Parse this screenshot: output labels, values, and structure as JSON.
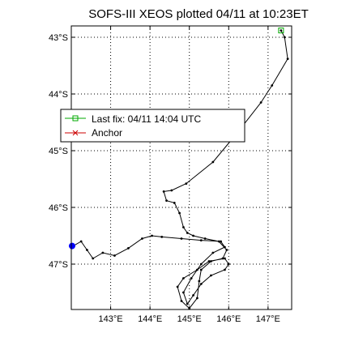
{
  "chart_data": {
    "type": "line",
    "title": "SOFS-III XEOS plotted 04/11 at 10:23ET",
    "xlabel": "",
    "ylabel": "",
    "xlim": [
      142.0,
      147.6
    ],
    "ylim": [
      -47.8,
      -42.8
    ],
    "grid": true,
    "legend_position": "upper-left",
    "x_ticks": [
      143,
      144,
      145,
      146,
      147
    ],
    "x_tick_labels": [
      "143°E",
      "144°E",
      "145°E",
      "146°E",
      "147°E"
    ],
    "y_ticks": [
      -43,
      -44,
      -45,
      -46,
      -47
    ],
    "y_tick_labels": [
      "43°S",
      "44°S",
      "45°S",
      "46°S",
      "47°S"
    ],
    "series": [
      {
        "name": "Last fix: 04/11 14:04 UTC",
        "color": "#00aa00",
        "marker": "square",
        "points": [
          [
            147.33,
            -42.88
          ]
        ]
      },
      {
        "name": "Anchor",
        "color": "#cc0000",
        "marker": "x",
        "points": []
      },
      {
        "name": "",
        "color": "#000000",
        "marker": "dot",
        "points": [
          [
            147.33,
            -42.88
          ],
          [
            147.42,
            -43.0
          ],
          [
            147.5,
            -43.38
          ],
          [
            147.1,
            -43.85
          ],
          [
            146.82,
            -44.15
          ],
          [
            146.2,
            -44.7
          ],
          [
            145.6,
            -45.2
          ],
          [
            144.92,
            -45.58
          ],
          [
            144.55,
            -45.7
          ],
          [
            144.35,
            -45.72
          ],
          [
            144.42,
            -45.88
          ],
          [
            144.62,
            -45.92
          ],
          [
            144.75,
            -46.1
          ],
          [
            144.85,
            -46.35
          ],
          [
            144.95,
            -46.45
          ],
          [
            145.1,
            -46.5
          ],
          [
            145.4,
            -46.55
          ],
          [
            145.75,
            -46.6
          ],
          [
            145.95,
            -46.75
          ],
          [
            145.85,
            -46.9
          ],
          [
            145.55,
            -46.95
          ],
          [
            145.3,
            -47.1
          ],
          [
            145.25,
            -47.3
          ],
          [
            145.2,
            -47.6
          ],
          [
            145.0,
            -47.78
          ],
          [
            144.8,
            -47.65
          ],
          [
            144.7,
            -47.4
          ],
          [
            144.85,
            -47.25
          ],
          [
            145.2,
            -47.1
          ],
          [
            145.5,
            -46.95
          ],
          [
            145.9,
            -46.9
          ],
          [
            146.0,
            -47.0
          ],
          [
            145.9,
            -47.1
          ],
          [
            145.55,
            -47.2
          ],
          [
            145.3,
            -47.35
          ],
          [
            145.1,
            -47.55
          ],
          [
            144.95,
            -47.7
          ],
          [
            144.85,
            -47.5
          ],
          [
            145.05,
            -47.25
          ],
          [
            145.3,
            -47.0
          ],
          [
            145.6,
            -46.8
          ],
          [
            145.9,
            -46.7
          ],
          [
            145.8,
            -46.6
          ],
          [
            145.3,
            -46.58
          ],
          [
            144.8,
            -46.55
          ],
          [
            144.3,
            -46.52
          ],
          [
            144.05,
            -46.5
          ],
          [
            143.8,
            -46.55
          ],
          [
            143.45,
            -46.72
          ],
          [
            143.1,
            -46.85
          ],
          [
            142.8,
            -46.8
          ],
          [
            142.55,
            -46.9
          ],
          [
            142.4,
            -46.75
          ],
          [
            142.25,
            -46.6
          ],
          [
            142.05,
            -46.68
          ]
        ]
      },
      {
        "name": "",
        "color": "#0000ff",
        "marker": "circle",
        "points": [
          [
            142.02,
            -46.68
          ]
        ]
      }
    ]
  }
}
